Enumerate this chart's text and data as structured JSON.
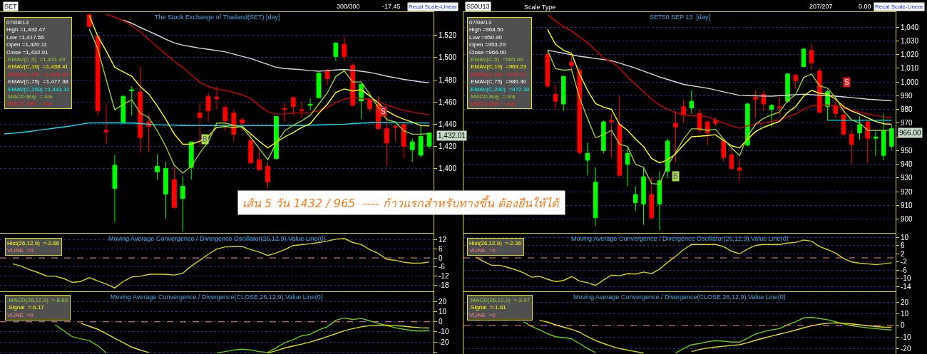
{
  "chart_data": [
    {
      "type": "candlestick",
      "title": "The Stock Exchange of Thailand(SET) [day]",
      "categories": [
        null,
        null,
        null,
        null,
        null,
        null,
        null,
        null,
        null,
        null,
        null,
        null,
        null,
        null,
        null,
        null,
        null,
        null,
        null,
        null,
        null,
        null,
        null,
        null,
        null,
        null,
        null,
        null,
        null,
        null,
        null,
        null,
        null,
        null,
        null,
        null,
        null,
        null,
        null,
        null,
        null,
        null,
        null,
        null,
        null,
        null,
        null,
        null,
        null,
        null,
        null
      ],
      "ohlc": [
        null,
        null,
        null,
        null,
        null,
        null,
        null,
        null,
        null,
        null,
        [
          1538.5,
          1540,
          1527,
          1528
        ],
        [
          1519,
          1519,
          1448,
          1452
        ],
        [
          1434.4,
          1458,
          1422,
          1433
        ],
        [
          1382,
          1412,
          1352,
          1403
        ],
        [
          1442,
          1466,
          1440,
          1465
        ],
        [
          1470,
          1474,
          1448,
          1471
        ],
        [
          1469,
          1492,
          1415,
          1428
        ],
        [
          1442,
          1449,
          1415,
          1438
        ],
        [
          1397,
          1413,
          1390,
          1402
        ],
        [
          1377,
          1406,
          1355,
          1400
        ],
        [
          1390,
          1401,
          1364,
          1365
        ],
        [
          1373,
          1393,
          1343,
          1384
        ],
        [
          1401,
          1424,
          1390,
          1424
        ],
        [
          1450,
          1459,
          1420,
          1446
        ],
        [
          1465,
          1468,
          1442,
          1452
        ],
        [
          1464.5,
          1474,
          1453,
          1463
        ],
        [
          1455,
          1458,
          1434,
          1443
        ],
        [
          1450,
          1453,
          1424,
          1431
        ],
        [
          1444,
          1446,
          1434,
          1441
        ],
        [
          1425,
          1431,
          1405,
          1405
        ],
        [
          1408,
          1418,
          1398,
          1399
        ],
        [
          1402,
          1406,
          1382,
          1388
        ],
        [
          1409,
          1447,
          1408,
          1447
        ],
        [
          1454,
          1459,
          1442,
          1453
        ],
        [
          1464,
          1465,
          1448,
          1456
        ],
        [
          1453,
          1460,
          1446,
          1452
        ],
        [
          1457,
          1463,
          1453,
          1458
        ],
        [
          1464,
          1487,
          1463,
          1486
        ],
        [
          1488,
          1490,
          1475,
          1481
        ],
        [
          1501,
          1514,
          1497,
          1513
        ],
        [
          1512,
          1519,
          1497,
          1501
        ],
        [
          1493,
          1495,
          1456,
          1457
        ],
        [
          1461,
          1477,
          1445,
          1476
        ],
        [
          1462,
          1463,
          1451,
          1454
        ],
        [
          1458,
          1465,
          1435,
          1436
        ],
        [
          1436,
          1446,
          1403,
          1423
        ],
        [
          1438,
          1439,
          1425,
          1437
        ],
        [
          1440,
          1442,
          1409,
          1420
        ],
        [
          1417,
          1427,
          1406,
          1424
        ],
        [
          1412,
          1439,
          1410,
          1429
        ],
        [
          1420.11,
          1432.47,
          1417.55,
          1432.01
        ]
      ],
      "series": [
        {
          "type": "line",
          "color": "#00e5ee",
          "values": [
            1431.2,
            1431.8,
            1432.5,
            1433.5,
            1434.5,
            1435.5,
            1436.5,
            1437.5,
            1438.5,
            1440,
            1441.1,
            1441.1,
            1441.2,
            1441.2,
            1441,
            1441,
            1440.5,
            1440,
            1439.5,
            1439.2,
            1439,
            1438.8,
            1438.7,
            1438.7,
            1438.7,
            1438.7,
            1438.7,
            1438.7,
            1438.7,
            1438.7,
            1438.7,
            1438.7,
            1438.7,
            1438.7,
            1438.7,
            1438.8,
            1439,
            1439.3,
            1439.6,
            1439.8,
            1440,
            1440.5,
            1441,
            1441.3,
            1441.5,
            1441.5,
            1441.4,
            1441.3,
            1441.2,
            1441.1,
            1441.11
          ]
        },
        {
          "type": "line",
          "color": "#d8d8d8",
          "values": [
            null,
            null,
            null,
            null,
            null,
            null,
            null,
            null,
            null,
            null,
            null,
            null,
            null,
            null,
            1533.9,
            1530.9,
            1527.2,
            1523.7,
            1520.3,
            1516.5,
            1513.3,
            1511.2,
            1509.9,
            1508.5,
            1507.5,
            1506.4,
            1505.1,
            1503.2,
            1501.1,
            1499.2,
            1496.5,
            1493.9,
            1491.2,
            1490.1,
            1489.6,
            1489.1,
            1488.3,
            1487.7,
            1488.3,
            1488.8,
            1489.3,
            1488.5,
            1487.7,
            1486.7,
            1485.1,
            1483.2,
            1481.9,
            1480.3,
            1479.2,
            1478.1,
            1477.38
          ]
        },
        {
          "type": "line",
          "color": "#cc0000",
          "values": [
            null,
            null,
            null,
            null,
            null,
            null,
            null,
            null,
            null,
            null,
            null,
            null,
            1539.2,
            1536.5,
            1533.3,
            1528.5,
            1523.2,
            1516.5,
            1509.9,
            1503.2,
            1496.5,
            1491.2,
            1484.5,
            1477.9,
            1473.9,
            1471.7,
            1470.4,
            1468.5,
            1466.4,
            1463.2,
            1456.5,
            1451.2,
            1449.1,
            1449.3,
            1449.9,
            1450.1,
            1450.4,
            1452,
            1455.2,
            1459.2,
            1462.7,
            1463.7,
            1463.2,
            1462.7,
            1460,
            1457.3,
            1454.7,
            1452.5,
            1450.9,
            1449.6,
            1448.48
          ]
        },
        {
          "type": "line",
          "color": "#ffff00",
          "values": [
            null,
            null,
            null,
            null,
            null,
            null,
            null,
            null,
            null,
            null,
            1537.9,
            1519.2,
            1505.9,
            1491.2,
            1487.2,
            1483.2,
            1473.9,
            1467.2,
            1456.5,
            1444.5,
            1431.2,
            1421.9,
            1421.9,
            1424.5,
            1429.1,
            1437.1,
            1437.9,
            1437.1,
            1437.9,
            1431.2,
            1424.5,
            1418.7,
            1423.7,
            1428.5,
            1432.5,
            1437.1,
            1440.5,
            1449.9,
            1457.9,
            1468.5,
            1471.7,
            1469.9,
            1471.2,
            1465.3,
            1459.2,
            1452,
            1447.7,
            1444.5,
            1441.9,
            1438.7,
            1438.41
          ]
        },
        {
          "type": "line",
          "color": "#9acd32",
          "values": [
            null,
            null,
            null,
            null,
            null,
            null,
            null,
            null,
            null,
            null,
            1526,
            1508,
            1480,
            1453,
            1458,
            1462,
            1450,
            1446,
            1434,
            1420,
            1403,
            1396,
            1402,
            1414,
            1424,
            1441,
            1441,
            1439,
            1437,
            1428,
            1418,
            1408,
            1423,
            1434,
            1439,
            1443,
            1448,
            1458,
            1468,
            1483,
            1488,
            1478,
            1478,
            1467,
            1455,
            1444,
            1442,
            1434,
            1431,
            1431,
            1431.49
          ]
        }
      ],
      "ylim": [
        1342,
        1541
      ],
      "yticks": [
        {
          "value": 1400,
          "label": "1,400"
        },
        {
          "value": 1420,
          "label": "1,420"
        },
        {
          "value": 1440,
          "label": "1,440"
        },
        {
          "value": 1460,
          "label": "1,460"
        },
        {
          "value": 1480,
          "label": "1,480"
        },
        {
          "value": 1500,
          "label": "1,500"
        },
        {
          "value": 1520,
          "label": "1,520"
        }
      ],
      "grid": "y",
      "tick_labels": "y",
      "annotations": [
        "07/08/13",
        "High =1,432.47",
        "Low =1,417.55",
        "Open =1,420.11",
        "Close =1,432.01",
        ".EMAV(C,5)  =1,431.49",
        ".EMAV(C,10)  =1,438.41",
        ".EMAV(C,25)  =1,448.48",
        ".EMAV(C,75)  =1,477.38",
        ".EMAV(C,200) =1,441.11",
        ".MACD.Buy  = n/a",
        ".MACD.Sell  = n/a",
        "1,432.01",
        "B",
        "S",
        "SET",
        "300/300",
        "-17.45",
        "Recal Scale-Linear",
        "เส้น 5 วัน 1432 / 965  ---- ก้าวแรกสำหรับทางขึ้น ต้องยืนให้ได้"
      ]
    },
    {
      "type": "candlestick",
      "title": "SET50 SEP 13  [day]",
      "categories": [
        null,
        null,
        null,
        null,
        null,
        null,
        null,
        null,
        null,
        null,
        null,
        null,
        null,
        null,
        null,
        null,
        null,
        null,
        null,
        null,
        null,
        null,
        null,
        null,
        null,
        null,
        null,
        null,
        null,
        null,
        null,
        null,
        null,
        null,
        null,
        null,
        null,
        null,
        null,
        null,
        null,
        null,
        null,
        null,
        null,
        null,
        null,
        null,
        null,
        null,
        null,
        null,
        null,
        null
      ],
      "ohlc": [
        null,
        null,
        null,
        null,
        null,
        null,
        null,
        null,
        null,
        null,
        [
          1020,
          1022,
          996,
          997
        ],
        [
          991,
          998,
          980,
          986
        ],
        [
          984,
          1005,
          979,
          1004
        ],
        [
          1014.5,
          1019,
          1009,
          1012
        ],
        [
          1008.5,
          1010,
          947,
          948.6
        ],
        [
          943,
          956,
          932,
          948
        ],
        [
          901,
          938,
          895,
          927
        ],
        [
          950,
          972,
          948,
          971
        ],
        [
          972,
          977,
          945,
          971
        ],
        [
          969,
          990,
          931,
          932
        ],
        [
          940,
          952,
          924,
          948
        ],
        [
          912,
          924,
          906,
          918
        ],
        [
          911,
          938,
          896,
          931
        ],
        [
          918,
          931,
          900,
          901
        ],
        [
          911,
          935,
          892,
          928
        ],
        [
          935,
          959,
          930,
          957
        ],
        [
          970,
          979,
          941,
          967
        ],
        [
          982,
          987,
          970,
          976
        ],
        [
          981,
          994,
          977,
          986
        ],
        [
          977,
          980,
          962,
          965
        ],
        [
          971,
          972,
          954,
          963
        ],
        [
          972,
          974,
          968,
          970
        ],
        [
          957,
          957,
          942,
          945
        ],
        [
          947,
          952,
          936,
          937
        ],
        [
          937.4,
          944,
          928,
          935.7
        ],
        [
          954,
          985,
          953,
          984
        ],
        [
          989,
          994,
          974,
          987.5
        ],
        [
          991,
          994,
          979,
          984
        ],
        [
          980,
          984,
          967,
          983
        ],
        [
          982,
          989,
          976,
          981
        ],
        [
          986,
          1006,
          985,
          1006
        ],
        [
          1005,
          1006,
          995,
          1001
        ],
        [
          1011.3,
          1025,
          1010.6,
          1024
        ],
        [
          1023,
          1028,
          1009,
          1014
        ],
        [
          1008,
          1010,
          977,
          978
        ],
        [
          982,
          994,
          972,
          993
        ],
        [
          983,
          987,
          974,
          977
        ],
        [
          976,
          985,
          961,
          962
        ],
        [
          962,
          965,
          940,
          954.5
        ],
        [
          963,
          975,
          958,
          969
        ],
        [
          971,
          972,
          941,
          959
        ],
        [
          959,
          964,
          946,
          960
        ],
        [
          946.5,
          977,
          943,
          964.4
        ],
        [
          953.2,
          968.5,
          950.9,
          966.0
        ]
      ],
      "series": [
        {
          "type": "line",
          "color": "#d8d8d8",
          "values": [
            null,
            null,
            null,
            null,
            null,
            null,
            null,
            null,
            null,
            null,
            1023.2,
            1022.1,
            1021,
            1019.9,
            1018.8,
            1018,
            1017.2,
            1016.4,
            1015.6,
            1013.8,
            1012,
            1010.2,
            1008,
            1005.9,
            1003.7,
            1001.9,
            1000.1,
            998.3,
            997.4,
            996.4,
            995.5,
            994.2,
            992.9,
            991.6,
            990.3,
            990.1,
            990,
            989.8,
            989.7,
            990.1,
            990.5,
            990.8,
            991.2,
            990.8,
            990.4,
            990.1,
            989.7,
            989.2,
            988.6,
            988.1,
            987.5,
            987.1,
            986.7,
            986.3
          ]
        },
        {
          "type": "line",
          "color": "#cc0000",
          "values": [
            null,
            null,
            null,
            null,
            null,
            null,
            null,
            null,
            null,
            null,
            1049.1,
            1044.7,
            1040.4,
            1037.2,
            1032.9,
            1028.6,
            1023.2,
            1017.8,
            1014.5,
            1010.2,
            1003.7,
            998.3,
            992.9,
            987.5,
            983.2,
            980,
            977.8,
            976.1,
            975.6,
            975.2,
            974.6,
            972.4,
            970.2,
            968.1,
            966.3,
            968.1,
            969.2,
            970.2,
            971.3,
            972.4,
            974.6,
            976.7,
            980,
            982.6,
            983.2,
            983.2,
            982.6,
            981.1,
            979.5,
            978.2,
            976.7,
            975.6,
            974.6,
            974.12
          ]
        },
        {
          "type": "line",
          "color": "#00e5ee",
          "values": [
            null,
            null,
            null,
            null,
            null,
            null,
            null,
            null,
            null,
            null,
            null,
            null,
            null,
            null,
            null,
            null,
            null,
            null,
            null,
            null,
            null,
            null,
            null,
            null,
            null,
            null,
            null,
            null,
            null,
            null,
            null,
            null,
            null,
            null,
            null,
            null,
            null,
            null,
            null,
            null,
            null,
            null,
            null,
            null,
            null,
            972.1,
            972.1,
            972.1,
            972.1,
            972.1,
            972.1,
            972.1,
            972.1,
            972.1
          ]
        },
        {
          "type": "line",
          "color": "#ffff00",
          "values": [
            null,
            null,
            null,
            null,
            null,
            null,
            null,
            null,
            null,
            null,
            1038.3,
            1027.5,
            1023.2,
            1021,
            1005.9,
            994,
            984.3,
            981.7,
            980,
            969.2,
            964.8,
            958.4,
            953,
            944.3,
            941.1,
            943.2,
            947.6,
            954.1,
            960.1,
            960.5,
            961,
            961.6,
            957.3,
            953.6,
            951.9,
            958.4,
            963.8,
            967,
            969.2,
            971.3,
            977.8,
            982.1,
            989.7,
            994,
            991.8,
            991.2,
            987.5,
            982.1,
            978.9,
            976.7,
            973.9,
            971.3,
            969.6,
            969.23
          ]
        },
        {
          "type": "line",
          "color": "#9acd32",
          "values": [
            null,
            null,
            null,
            null,
            null,
            null,
            null,
            null,
            null,
            null,
            1023.2,
            1009.8,
            1008.7,
            1009.1,
            988.6,
            973.5,
            959.4,
            961.6,
            964.8,
            954.7,
            953,
            940,
            937.8,
            926,
            925.5,
            938.9,
            948.6,
            958.4,
            965.9,
            965.9,
            964.8,
            965.5,
            958.4,
            951.9,
            946.5,
            960.5,
            969.2,
            973.5,
            976.1,
            978.2,
            986.4,
            990.8,
            1003.3,
            1005.9,
            997.2,
            995.5,
            988.6,
            978.9,
            972.4,
            970.2,
            964.8,
            964.8,
            964.8,
            965.0
          ]
        }
      ],
      "ylim": [
        890,
        1051
      ],
      "yticks": [
        900,
        910,
        920,
        930,
        940,
        950,
        {
          "value": 960,
          "label": null
        },
        970,
        980,
        990,
        {
          "value": 1000,
          "label": "1,000"
        },
        {
          "value": 1010,
          "label": "1,010"
        },
        {
          "value": 1020,
          "label": "1,020"
        },
        {
          "value": 1030,
          "label": "1,030"
        },
        {
          "value": 1040,
          "label": "1,040"
        }
      ],
      "grid": "y",
      "tick_labels": "y",
      "annotations": [
        "07/08/13",
        "High =968.50",
        "Low =950.90",
        "Open =953.20",
        "Close =966.00",
        ".EMAV(C,5)  =965.00",
        ".EMAV(C,10)  =969.23",
        ".EMAV(C,25)  =974.12",
        ".EMAV(C,75)  =986.30",
        ".EMAV(C,200)  =972.10",
        ".MACD.Buy  = n/a",
        ".MACD.Sell  = n/a",
        "966.00",
        "B",
        "S",
        "S50U13",
        "Scale Type",
        "207/207",
        "0.00",
        "Recal Scale-Linear"
      ]
    },
    {
      "type": "line",
      "title": "Moving Average Convergence / Divergence Oscillator(26,12,9),Value Line(0)",
      "categories": [
        null,
        null,
        null,
        null,
        null,
        null,
        null,
        null,
        null,
        null,
        null,
        null,
        null,
        null,
        null,
        null,
        null,
        null,
        null,
        null,
        null,
        null,
        null,
        null,
        null,
        null,
        null,
        null,
        null,
        null,
        null,
        null,
        null,
        null,
        null,
        null,
        null,
        null,
        null,
        null,
        null,
        null,
        null,
        null,
        null,
        null,
        null,
        null,
        null,
        null,
        null
      ],
      "series": [
        {
          "color": "#d4d400",
          "values": [
            null,
            -3.9,
            -5.5,
            -7.8,
            -9.8,
            -12,
            -12.2,
            -13.7,
            -16.3,
            -15.7,
            -13.1,
            -15.3,
            -17.3,
            -20,
            -15.7,
            -12.7,
            -12.2,
            -11,
            -10.8,
            -11,
            -11.4,
            -10.2,
            -5.5,
            -1.6,
            2.4,
            5.9,
            7.3,
            7.5,
            7.5,
            5.5,
            3.9,
            1.6,
            3.3,
            5.5,
            8.2,
            8.8,
            9.4,
            10.2,
            11.2,
            12.4,
            12.9,
            10.2,
            8.8,
            5.5,
            2.9,
            -1,
            -1.6,
            -2.9,
            -3.5,
            -3.5,
            -2.66
          ]
        }
      ],
      "ylim": [
        -22.2,
        16.1
      ],
      "yticks": [
        -18,
        -12,
        -6,
        0,
        6,
        12
      ],
      "grid": "y",
      "tick_labels": "y",
      "ref_lines": [
        {
          "axis": "y",
          "value": 0,
          "color": "#ff8080",
          "line_style": "dashed"
        }
      ],
      "annotations": [
        "Hist(26,12,9)  =-2.66",
        "VLINE  =0"
      ]
    },
    {
      "type": "line",
      "title": "Moving Average Convergence / Divergence Oscillator(26,12,9),Value Line(0)",
      "categories": [
        null,
        null,
        null,
        null,
        null,
        null,
        null,
        null,
        null,
        null,
        null,
        null,
        null,
        null,
        null,
        null,
        null,
        null,
        null,
        null,
        null,
        null,
        null,
        null,
        null,
        null,
        null,
        null,
        null,
        null,
        null,
        null,
        null,
        null,
        null,
        null,
        null,
        null,
        null,
        null,
        null,
        null,
        null,
        null,
        null,
        null,
        null,
        null,
        null,
        null,
        null,
        null,
        null,
        null
      ],
      "series": [
        {
          "color": "#d4d400",
          "values": [
            null,
            0.3,
            -1.7,
            -3.6,
            -3.6,
            -4.6,
            -5.8,
            -7.2,
            -9.4,
            -9,
            -10.4,
            -11.6,
            -11,
            -9.1,
            -11.3,
            -12.1,
            -13.4,
            -10.8,
            -8.4,
            -8.7,
            -7.7,
            -7.9,
            -6.9,
            -7.7,
            -5.5,
            -2.2,
            0.7,
            4,
            6.5,
            6.5,
            6.5,
            6.5,
            5.5,
            3.2,
            2,
            4.3,
            6.1,
            6.5,
            6.5,
            6.5,
            7.2,
            7.5,
            8.7,
            8.1,
            5.5,
            4,
            2.3,
            -0.3,
            -2,
            -2.6,
            -2.9,
            -3.3,
            -2.9,
            -2.36
          ]
        }
      ],
      "ylim": [
        -16.3,
        11.8
      ],
      "yticks": [
        -14,
        -10,
        -6,
        -2,
        2,
        6,
        10
      ],
      "grid": "y",
      "tick_labels": "y",
      "ref_lines": [
        {
          "axis": "y",
          "value": 0,
          "color": "#ff8080",
          "line_style": "dashed"
        }
      ],
      "annotations": [
        "Hist(26,12,9)  =-2.36",
        "VLINE  =0"
      ]
    },
    {
      "type": "line",
      "title": "Moving Average Convergence / Divergence(CLOSE,26,12,9),Value Line(0)",
      "categories": [
        null,
        null,
        null,
        null,
        null,
        null,
        null,
        null,
        null,
        null,
        null,
        null,
        null,
        null,
        null,
        null,
        null,
        null,
        null,
        null,
        null,
        null,
        null,
        null,
        null,
        null,
        null,
        null,
        null,
        null,
        null,
        null,
        null,
        null,
        null,
        null,
        null,
        null,
        null,
        null,
        null,
        null,
        null,
        null,
        null,
        null,
        null,
        null,
        null,
        null,
        null
      ],
      "series": [
        {
          "color": "#66cc00",
          "values": [
            null,
            null,
            null,
            null,
            null,
            null,
            -3,
            -8.9,
            -14.8,
            -16.9,
            -18.6,
            -23.7,
            -31,
            null,
            null,
            null,
            null,
            null,
            null,
            null,
            null,
            null,
            null,
            null,
            null,
            -31,
            -29.6,
            -28.1,
            -27.2,
            -28.1,
            -29.6,
            -30.5,
            -25.7,
            -20.7,
            -17.8,
            -13.9,
            -12.4,
            -8,
            -5,
            1.5,
            3.8,
            2.4,
            3.3,
            0.9,
            -1.5,
            -3.8,
            -5.9,
            -7.4,
            -8.6,
            -9.2,
            -8.83
          ]
        },
        {
          "color": "#e0e000",
          "values": [
            null,
            null,
            null,
            null,
            null,
            null,
            null,
            null,
            null,
            -1.5,
            -4.4,
            -7.4,
            -11.8,
            -16.3,
            -20.7,
            -25.1,
            -28.1,
            -30.5,
            null,
            null,
            null,
            null,
            null,
            null,
            null,
            null,
            null,
            null,
            null,
            null,
            null,
            -31,
            -28.7,
            -26,
            -24,
            -22.2,
            -20.1,
            -17.5,
            -14.8,
            -11.8,
            -8.9,
            -6.8,
            -5,
            -3.8,
            -3.3,
            -3.3,
            -3.8,
            -4.4,
            -5.3,
            -5.9,
            -6.17
          ]
        }
      ],
      "ylim": [
        -32,
        29.6
      ],
      "yticks": [
        {
          "value": -30,
          "label": null
        },
        -20,
        -10,
        0,
        10,
        20
      ],
      "grid": "y",
      "tick_labels": "y",
      "ref_lines": [
        {
          "axis": "y",
          "value": 0,
          "color": "#ff8080",
          "line_style": "dashed"
        }
      ],
      "annotations": [
        ".MACD(26,12,9)  =-8.83",
        ".Signal  =-6.17",
        "VLINE  =0"
      ]
    },
    {
      "type": "line",
      "title": "Moving Average Convergence / Divergence(CLOSE,26,12,9),Value Line(0)",
      "categories": [
        null,
        null,
        null,
        null,
        null,
        null,
        null,
        null,
        null,
        null,
        null,
        null,
        null,
        null,
        null,
        null,
        null,
        null,
        null,
        null,
        null,
        null,
        null,
        null,
        null,
        null,
        null,
        null,
        null,
        null,
        null,
        null,
        null,
        null,
        null,
        null,
        null,
        null,
        null,
        null,
        null,
        null,
        null,
        null,
        null,
        null,
        null,
        null,
        null,
        null,
        null,
        null,
        null,
        null
      ],
      "series": [
        {
          "color": "#66cc00",
          "values": [
            null,
            null,
            null,
            null,
            null,
            null,
            null,
            3.1,
            -0.8,
            -3.9,
            -7.2,
            -9.8,
            -10.6,
            -11.6,
            -15.7,
            -20.1,
            -23.5,
            null,
            null,
            null,
            null,
            null,
            null,
            null,
            null,
            null,
            -24,
            -20.1,
            -16.8,
            -15.7,
            -14.2,
            -13.2,
            -13.7,
            -14.5,
            -14.5,
            -11.1,
            -7.5,
            -5.4,
            -3.9,
            -2.8,
            0.5,
            3.1,
            6.5,
            7,
            5.9,
            4.9,
            3.1,
            1.3,
            -0.3,
            -1.3,
            -2.1,
            -2.8,
            -3.4,
            -3.97
          ]
        },
        {
          "color": "#e0e000",
          "values": [
            null,
            null,
            null,
            null,
            null,
            null,
            null,
            null,
            null,
            4.4,
            2.8,
            0.5,
            -1.5,
            -3.4,
            -5.9,
            -9.8,
            -13.2,
            -15.7,
            -18.1,
            -20.1,
            -21.4,
            -22.7,
            -24,
            null,
            null,
            null,
            null,
            null,
            -22.7,
            -20.9,
            -19.6,
            -18.8,
            -18.1,
            -17.3,
            -16.8,
            -15,
            -12.9,
            -11.1,
            -9.3,
            -7.5,
            -5.9,
            -4.1,
            -2.1,
            -0.3,
            1,
            1.8,
            2.1,
            1.8,
            1.3,
            0.5,
            -0.3,
            -1,
            -1.5,
            -1.61
          ]
        }
      ],
      "ylim": [
        -24.8,
        28.9
      ],
      "yticks": [
        -20,
        -10,
        0,
        10,
        20
      ],
      "grid": "y",
      "tick_labels": "y",
      "ref_lines": [
        {
          "axis": "y",
          "value": 0,
          "color": "#ff8080",
          "line_style": "dashed"
        }
      ],
      "annotations": [
        ".MACD(26,12,9)  =-3.97",
        ".Signal  =-1.61",
        "VLINE  =0"
      ]
    }
  ]
}
